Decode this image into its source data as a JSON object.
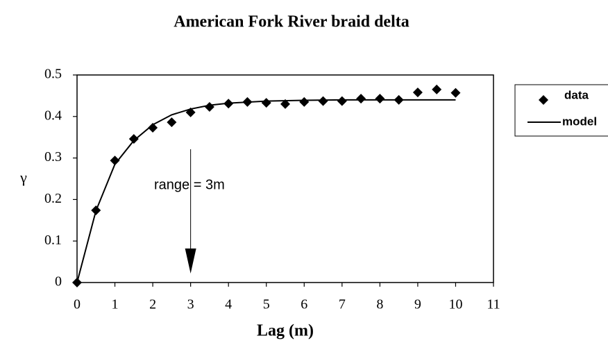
{
  "chart_data": {
    "type": "scatter",
    "title": "American Fork River braid delta",
    "x_label": "Lag (m)",
    "y_label": "γ",
    "xlim": [
      0,
      11
    ],
    "ylim": [
      0,
      0.5
    ],
    "xticks": [
      0,
      1,
      2,
      3,
      4,
      5,
      6,
      7,
      8,
      9,
      10,
      11
    ],
    "yticks": [
      0,
      0.1,
      0.2,
      0.3,
      0.4,
      0.5
    ],
    "grid": false,
    "legend": "right",
    "series": [
      {
        "name": "data",
        "type": "scatter",
        "color": "#000000",
        "x": [
          0,
          0.5,
          1,
          1.5,
          2,
          2.5,
          3,
          3.5,
          4,
          4.5,
          5,
          5.5,
          6,
          6.5,
          7,
          7.5,
          8,
          8.5,
          9,
          9.5,
          10
        ],
        "values": [
          0,
          0.174,
          0.294,
          0.346,
          0.373,
          0.386,
          0.41,
          0.423,
          0.431,
          0.435,
          0.433,
          0.43,
          0.435,
          0.437,
          0.437,
          0.443,
          0.443,
          0.44,
          0.458,
          0.465,
          0.457
        ]
      },
      {
        "name": "model",
        "type": "line",
        "color": "#000000",
        "x": [
          0,
          0.5,
          1,
          1.5,
          2,
          2.5,
          3,
          3.5,
          4,
          5,
          6,
          7,
          8,
          10
        ],
        "values": [
          0,
          0.173,
          0.285,
          0.342,
          0.38,
          0.404,
          0.418,
          0.427,
          0.432,
          0.437,
          0.439,
          0.44,
          0.44,
          0.44
        ]
      }
    ],
    "annotation": {
      "text": "range = 3m",
      "x": 3
    }
  }
}
